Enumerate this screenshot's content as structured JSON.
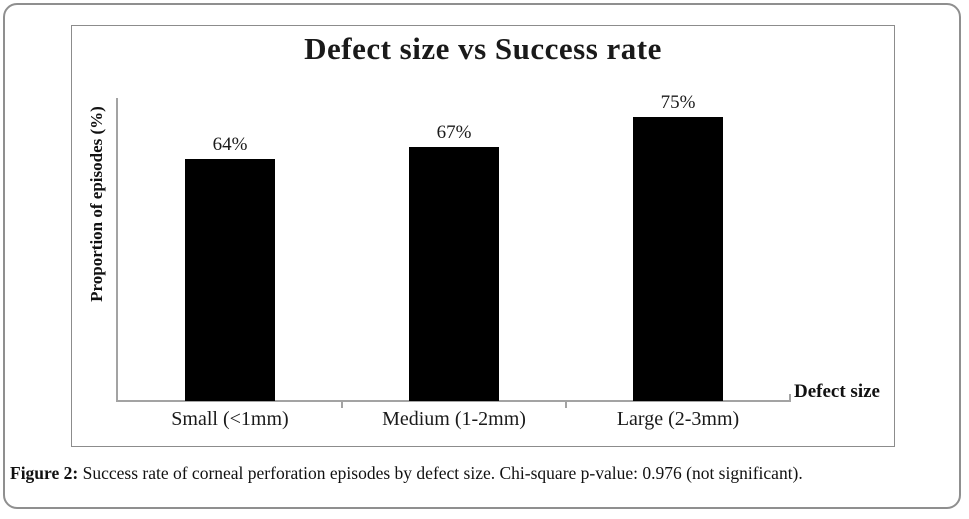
{
  "figure": {
    "caption_label": "Figure 2:",
    "caption_text": " Success rate of corneal perforation episodes by defect size. Chi-square p-value: 0.976 (not significant)."
  },
  "chart_data": {
    "type": "bar",
    "title": "Defect size vs Success rate",
    "categories": [
      "Small (<1mm)",
      "Medium (1-2mm)",
      "Large (2-3mm)"
    ],
    "values": [
      64,
      67,
      75
    ],
    "value_labels": [
      "64%",
      "67%",
      "75%"
    ],
    "xlabel": "Defect size",
    "ylabel": "Proportion of episodes (%)",
    "ylim": [
      0,
      80
    ],
    "grid": false,
    "legend": false,
    "bar_color": "#000000",
    "axis_color": "#a3a3a3",
    "text_color": "#1a1a1a"
  }
}
